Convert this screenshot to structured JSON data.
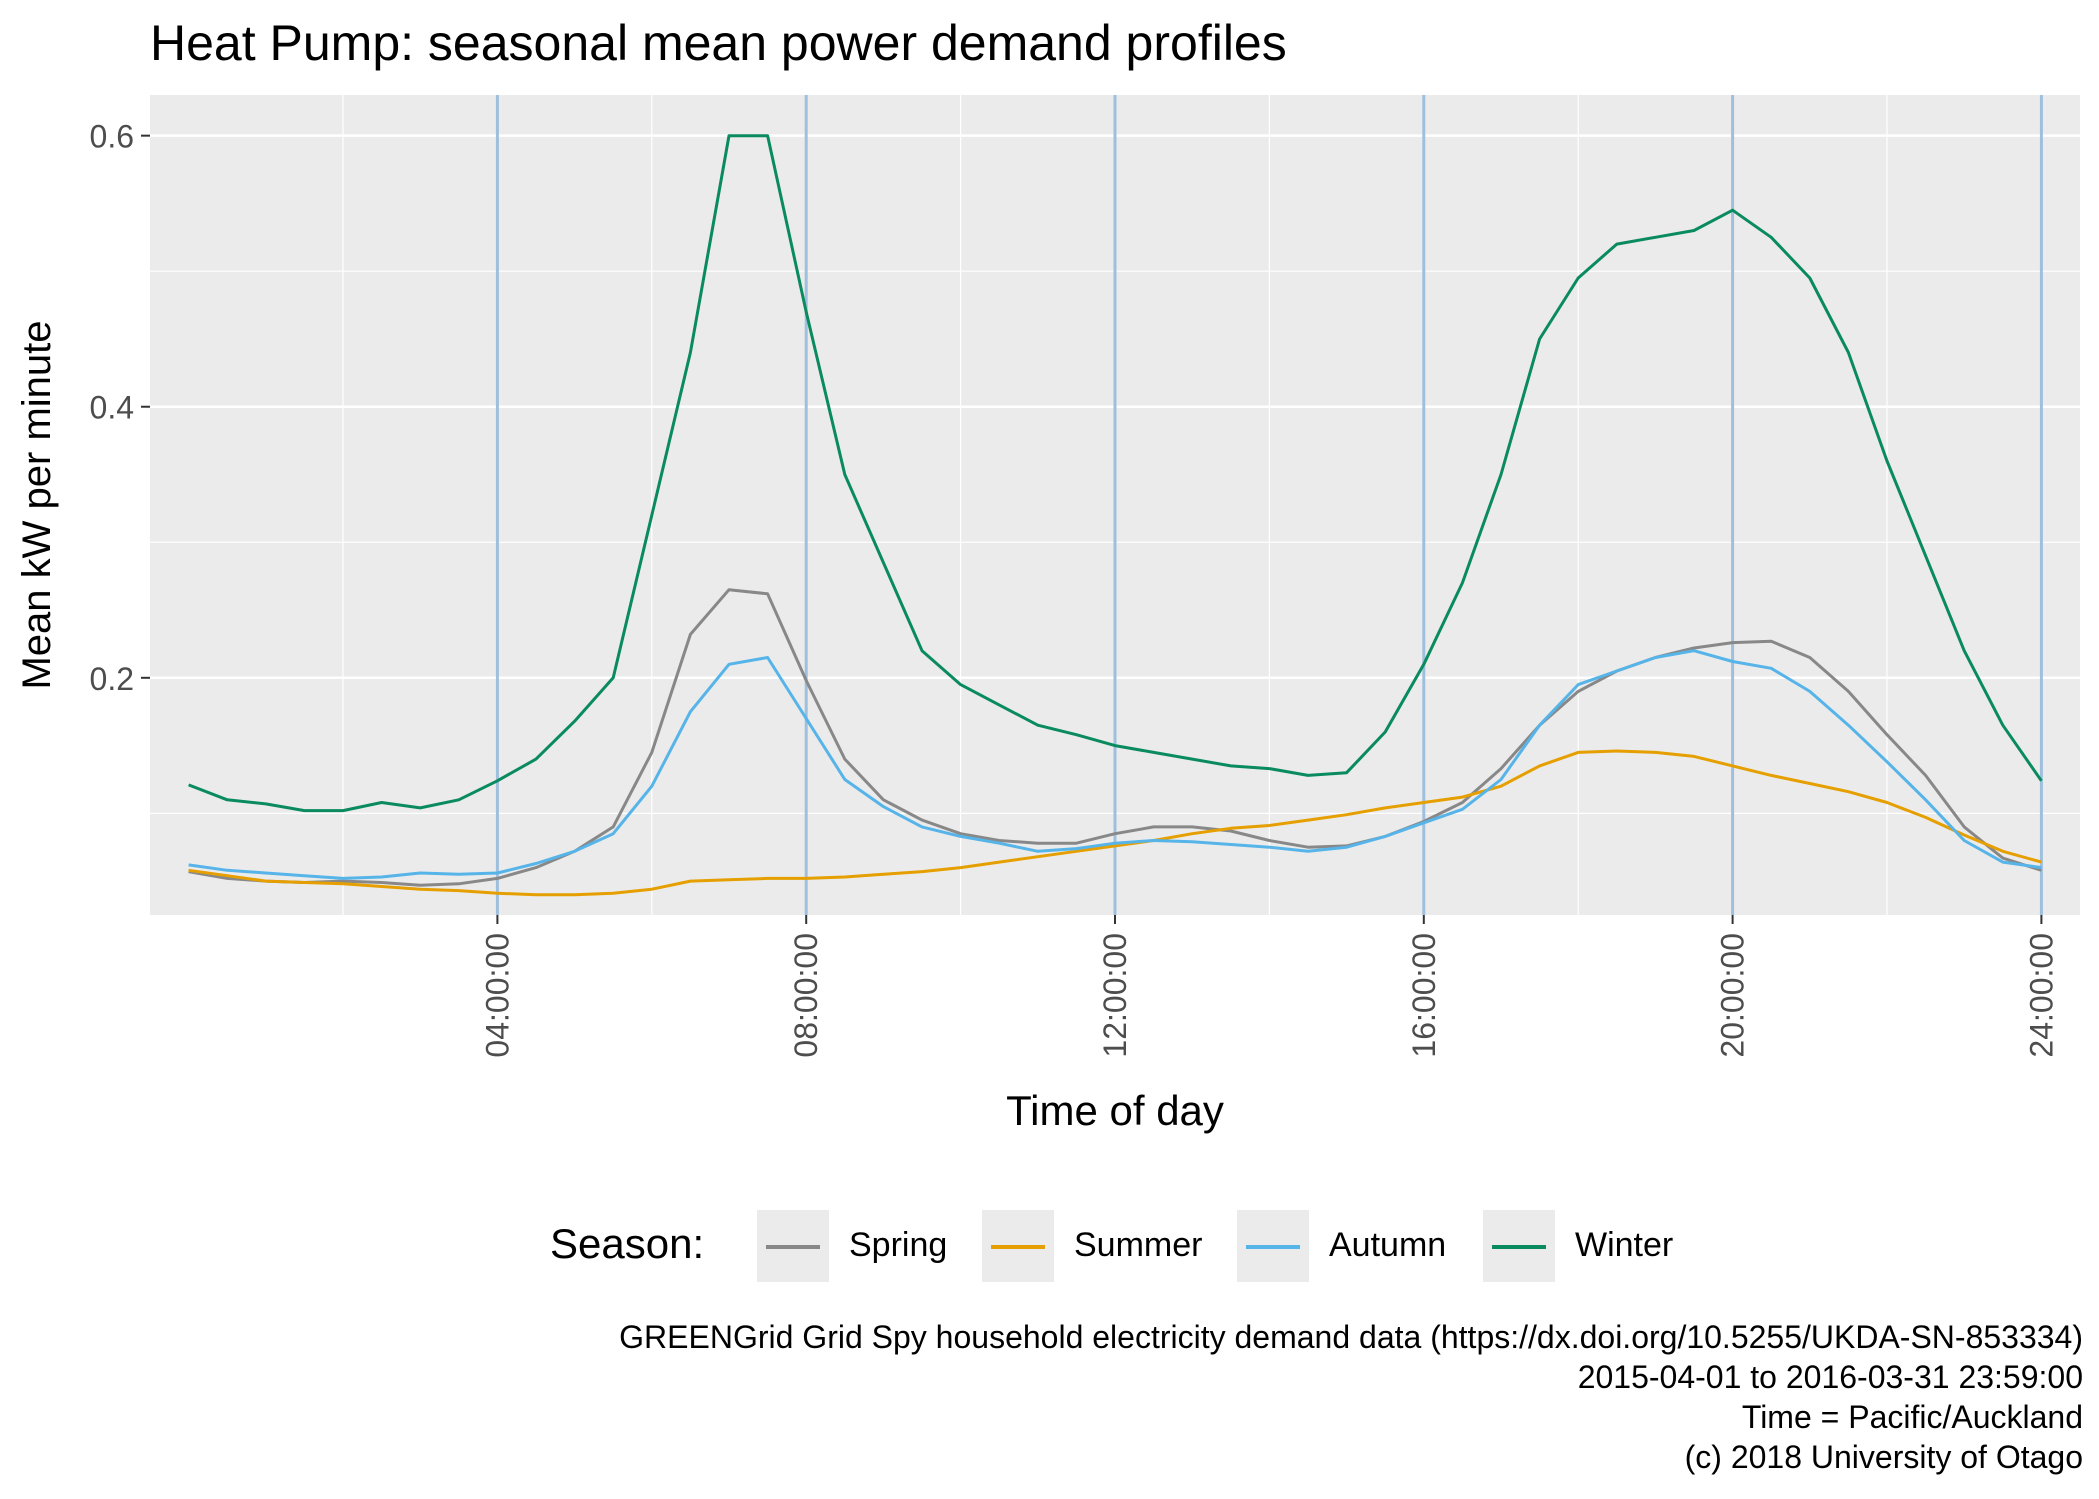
{
  "title": "Heat Pump: seasonal mean power demand profiles",
  "chart_data": {
    "type": "line",
    "title": "Heat Pump: seasonal mean power demand profiles",
    "xlabel": "Time of day",
    "ylabel": "Mean kW per minute",
    "x_unit": "hours",
    "xlim": [
      -0.5,
      24.5
    ],
    "ylim": [
      0.025,
      0.63
    ],
    "x_ticks": [
      4,
      8,
      12,
      16,
      20,
      24
    ],
    "x_tick_labels": [
      "04:00:00",
      "08:00:00",
      "12:00:00",
      "16:00:00",
      "20:00:00",
      "24:00:00"
    ],
    "y_ticks": [
      0.2,
      0.4,
      0.6
    ],
    "y_tick_labels": [
      "0.2",
      "0.4",
      "0.6"
    ],
    "vlines": [
      4,
      8,
      12,
      16,
      20,
      24
    ],
    "vline_color": "#9ebfdd",
    "grid": true,
    "legend_placement": "bottom",
    "legend_title": "Season:",
    "x": [
      0,
      0.5,
      1,
      1.5,
      2,
      2.5,
      3,
      3.5,
      4,
      4.5,
      5,
      5.5,
      6,
      6.5,
      7,
      7.5,
      8,
      8.5,
      9,
      9.5,
      10,
      10.5,
      11,
      11.5,
      12,
      12.5,
      13,
      13.5,
      14,
      14.5,
      15,
      15.5,
      16,
      16.5,
      17,
      17.5,
      18,
      18.5,
      19,
      19.5,
      20,
      20.5,
      21,
      21.5,
      22,
      22.5,
      23,
      23.5,
      24
    ],
    "series": [
      {
        "name": "Spring",
        "color": "#888888",
        "values": [
          0.057,
          0.052,
          0.05,
          0.049,
          0.05,
          0.049,
          0.047,
          0.048,
          0.052,
          0.06,
          0.072,
          0.09,
          0.145,
          0.232,
          0.265,
          0.262,
          0.198,
          0.14,
          0.11,
          0.095,
          0.085,
          0.08,
          0.078,
          0.078,
          0.085,
          0.09,
          0.09,
          0.087,
          0.08,
          0.075,
          0.076,
          0.083,
          0.094,
          0.108,
          0.133,
          0.165,
          0.19,
          0.205,
          0.215,
          0.222,
          0.226,
          0.227,
          0.215,
          0.19,
          0.158,
          0.128,
          0.09,
          0.067,
          0.058
        ]
      },
      {
        "name": "Summer",
        "color": "#e69f00",
        "values": [
          0.058,
          0.054,
          0.05,
          0.049,
          0.048,
          0.046,
          0.044,
          0.043,
          0.041,
          0.04,
          0.04,
          0.041,
          0.044,
          0.05,
          0.051,
          0.052,
          0.052,
          0.053,
          0.055,
          0.057,
          0.06,
          0.064,
          0.068,
          0.072,
          0.076,
          0.08,
          0.085,
          0.089,
          0.091,
          0.095,
          0.099,
          0.104,
          0.108,
          0.112,
          0.12,
          0.135,
          0.145,
          0.146,
          0.145,
          0.142,
          0.135,
          0.128,
          0.122,
          0.116,
          0.108,
          0.097,
          0.084,
          0.072,
          0.064
        ]
      },
      {
        "name": "Autumn",
        "color": "#56b4e9",
        "values": [
          0.062,
          0.058,
          0.056,
          0.054,
          0.052,
          0.053,
          0.056,
          0.055,
          0.056,
          0.063,
          0.072,
          0.085,
          0.12,
          0.175,
          0.21,
          0.215,
          0.17,
          0.125,
          0.105,
          0.09,
          0.083,
          0.078,
          0.072,
          0.074,
          0.078,
          0.08,
          0.079,
          0.077,
          0.075,
          0.072,
          0.075,
          0.083,
          0.093,
          0.103,
          0.125,
          0.165,
          0.195,
          0.205,
          0.215,
          0.22,
          0.212,
          0.207,
          0.19,
          0.165,
          0.138,
          0.11,
          0.08,
          0.064,
          0.06
        ]
      },
      {
        "name": "Winter",
        "color": "#0a8a5f",
        "values": [
          0.121,
          0.11,
          0.107,
          0.102,
          0.102,
          0.108,
          0.104,
          0.11,
          0.124,
          0.14,
          0.168,
          0.2,
          0.32,
          0.44,
          0.6,
          0.6,
          0.47,
          0.35,
          0.285,
          0.22,
          0.195,
          0.18,
          0.165,
          0.158,
          0.15,
          0.145,
          0.14,
          0.135,
          0.133,
          0.128,
          0.13,
          0.16,
          0.21,
          0.27,
          0.35,
          0.45,
          0.495,
          0.52,
          0.525,
          0.53,
          0.545,
          0.525,
          0.495,
          0.44,
          0.36,
          0.29,
          0.22,
          0.165,
          0.124
        ]
      }
    ]
  },
  "legend": {
    "title": "Season:",
    "items": [
      {
        "label": "Spring",
        "color": "#888888"
      },
      {
        "label": "Summer",
        "color": "#e69f00"
      },
      {
        "label": "Autumn",
        "color": "#56b4e9"
      },
      {
        "label": "Winter",
        "color": "#0a8a5f"
      }
    ]
  },
  "caption": [
    "GREENGrid Grid Spy household electricity demand data (https://dx.doi.org/10.5255/UKDA-SN-853334)",
    "2015-04-01 to 2016-03-31 23:59:00",
    "Time = Pacific/Auckland",
    "(c) 2018 University of Otago"
  ]
}
